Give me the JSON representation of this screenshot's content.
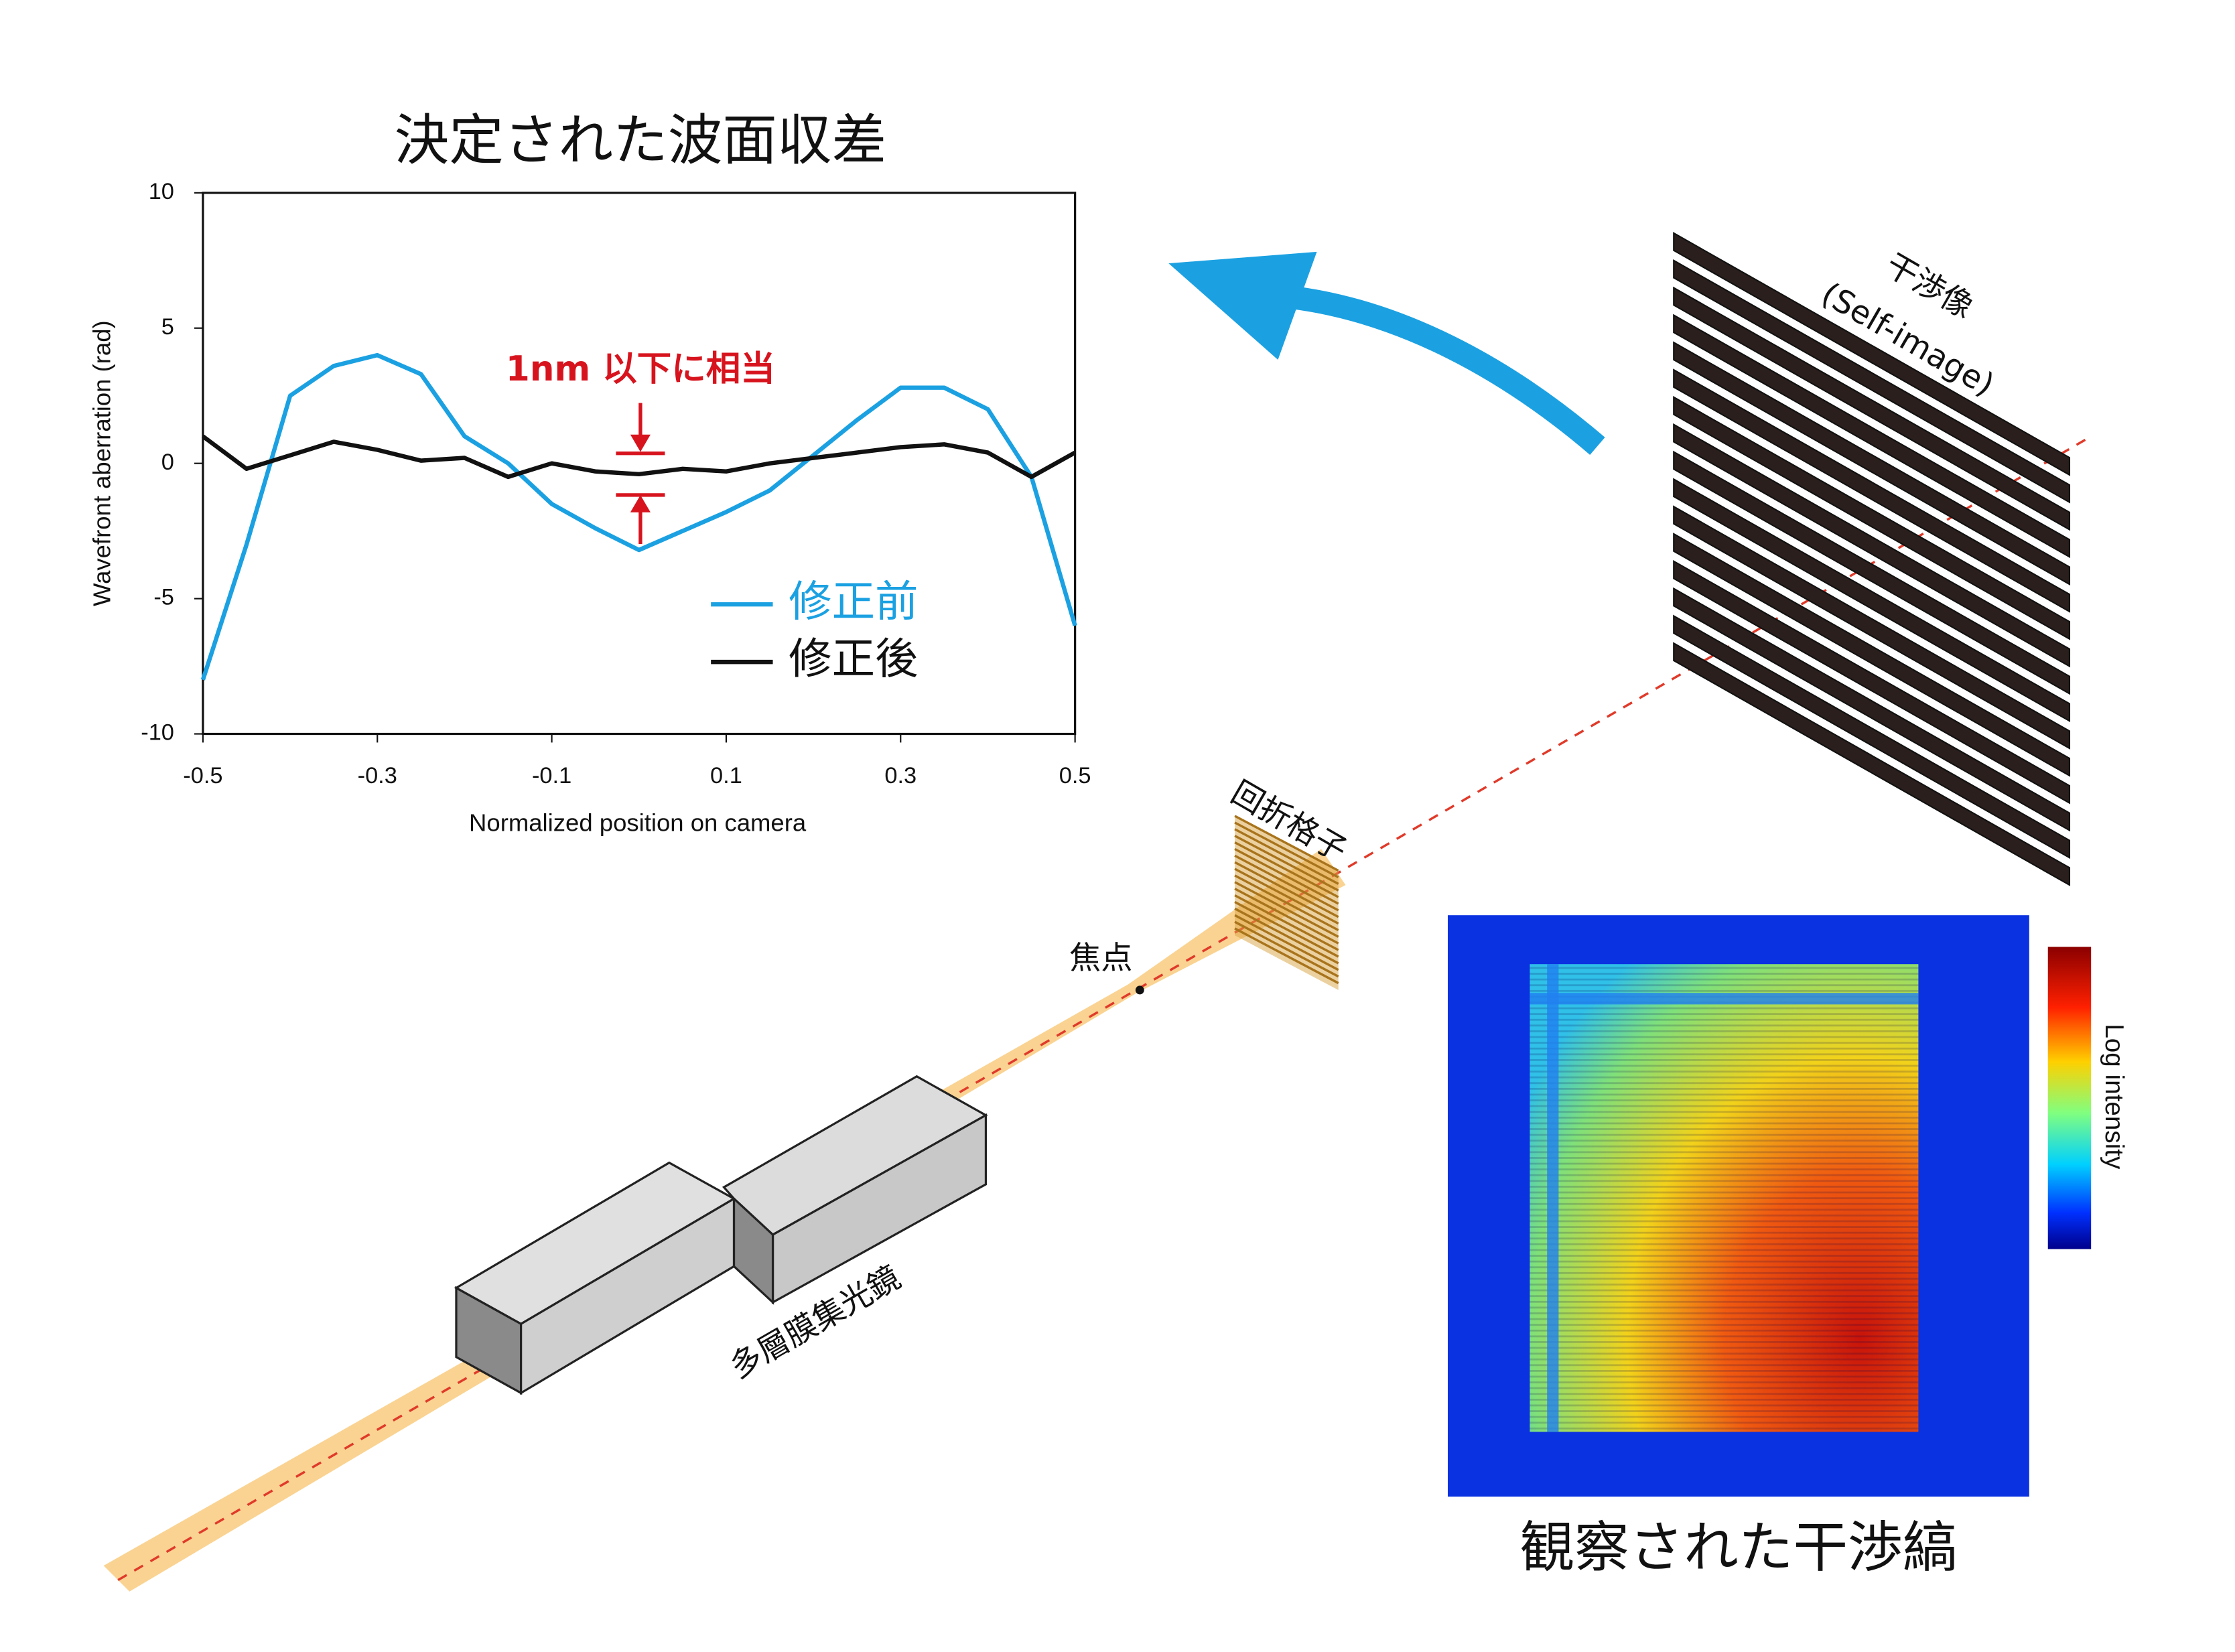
{
  "chart_data": {
    "type": "line",
    "title": "決定された波面収差",
    "x_label": "Normalized position on camera",
    "y_label": "Wavefront aberration (rad)",
    "annotation": "1nm 以下に相当",
    "x": [
      -0.5,
      -0.45,
      -0.4,
      -0.35,
      -0.3,
      -0.25,
      -0.2,
      -0.15,
      -0.1,
      -0.05,
      0,
      0.05,
      0.1,
      0.15,
      0.2,
      0.25,
      0.3,
      0.35,
      0.4,
      0.45,
      0.5
    ],
    "series": [
      {
        "name": "修正前",
        "color": "#1ba1e2",
        "values": [
          -8.0,
          -3.0,
          2.5,
          3.6,
          4.0,
          3.3,
          1.0,
          0.0,
          -1.5,
          -2.4,
          -3.2,
          -2.5,
          -1.8,
          -1.0,
          0.3,
          1.6,
          2.8,
          2.8,
          2.0,
          -0.5,
          -6.0
        ]
      },
      {
        "name": "修正後",
        "color": "#111111",
        "values": [
          1.0,
          -0.2,
          0.3,
          0.8,
          0.5,
          0.1,
          0.2,
          -0.5,
          0.0,
          -0.3,
          -0.4,
          -0.2,
          -0.3,
          0.0,
          0.2,
          0.4,
          0.6,
          0.7,
          0.4,
          -0.5,
          0.4
        ]
      }
    ],
    "xlim": [
      -0.5,
      0.5
    ],
    "xticks": [
      -0.5,
      -0.3,
      -0.1,
      0.1,
      0.3,
      0.5
    ],
    "ylim": [
      -10,
      10
    ],
    "yticks": [
      -10,
      -5,
      0,
      5,
      10
    ],
    "grid": false
  },
  "diagram": {
    "labels": {
      "self_image": "干渉像",
      "self_image_en": "(Self-image)",
      "grating": "回折格子",
      "focus": "焦点",
      "mirror": "多層膜集光鏡",
      "fringes": "観察された干渉縞",
      "colorbar": "Log intensity"
    }
  }
}
